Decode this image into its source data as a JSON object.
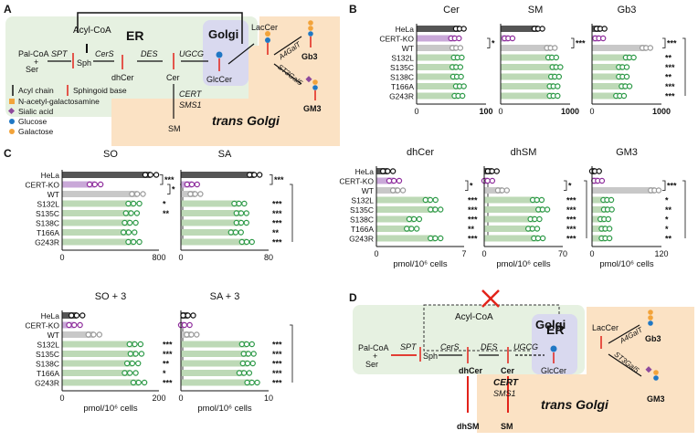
{
  "panel_labels": {
    "a": "A",
    "b": "B",
    "c": "C",
    "d": "D"
  },
  "pathway_a": {
    "er_label": "ER",
    "golgi_label": "Golgi",
    "trans_golgi_label": "trans Golgi",
    "acyl_coa": "Acyl-CoA",
    "palcoa": "Pal-CoA",
    "plus": "+",
    "ser": "Ser",
    "spt": "SPT",
    "sph": "Sph",
    "cers": "CerS",
    "des": "DES",
    "ugcg": "UGCG",
    "dhcer": "dhCer",
    "cer": "Cer",
    "glccer": "GlcCer",
    "laccer": "LacCer",
    "a4galt": "A4GalT",
    "st3gal5": "ST3Gal5",
    "gb3": "Gb3",
    "gm3": "GM3",
    "cert": "CERT",
    "sms1": "SMS1",
    "sm": "SM"
  },
  "legend_a": [
    {
      "label": "Acyl chain",
      "icon": "acyl-chain-icon",
      "color": "#111111"
    },
    {
      "label": "Sphingoid base",
      "icon": "sphingoid-base-icon",
      "color": "#e2231a"
    },
    {
      "label": "N-acetyl-galactosamine",
      "icon": "square-icon",
      "color": "#f2a33a"
    },
    {
      "label": "Sialic acid",
      "icon": "diamond-icon",
      "color": "#8e4a9c"
    },
    {
      "label": "Glucose",
      "icon": "circle-icon",
      "color": "#1f77c4"
    },
    {
      "label": "Galactose",
      "icon": "circle-icon",
      "color": "#f2a33a"
    }
  ],
  "pathway_d": {
    "er_label": "ER",
    "golgi_label": "Golgi",
    "trans_golgi_label": "trans Golgi",
    "acyl_coa": "Acyl-CoA",
    "palcoa": "Pal-CoA",
    "plus": "+",
    "ser": "Ser",
    "spt": "SPT",
    "sph": "Sph",
    "cers": "CerS",
    "des": "DES",
    "ugcg": "UGCG",
    "dhcer": "dhCer",
    "cer": "Cer",
    "glccer": "GlcCer",
    "laccer": "LacCer",
    "a4galt": "A4GalT",
    "st3gal5": "ST3Gal5",
    "gb3": "Gb3",
    "gm3": "GM3",
    "cert": "CERT",
    "sms1": "SMS1",
    "dhsm": "dhSM",
    "sm": "SM"
  },
  "units_label": "pmol/10⁶ cells",
  "colors": {
    "hela": "#555555",
    "certko": "#c9a8d8",
    "certko_marker": "#8e2c9c",
    "wt": "#c8c8c8",
    "wt_marker": "#9a9a9a",
    "mutant": "#bdd9b6",
    "mutant_marker": "#2e9a48",
    "er_bg": "#e6f1e1",
    "golgi_bg": "#d9d9ef",
    "trans_bg": "#fbe2c4"
  },
  "chart_data": [
    {
      "id": "cer",
      "title": "Cer",
      "type": "bar",
      "categories": [
        "HeLa",
        "CERT-KO",
        "WT",
        "S132L",
        "S135C",
        "S138C",
        "T166A",
        "G243R"
      ],
      "values": [
        62,
        55,
        57,
        59,
        57,
        58,
        62,
        60
      ],
      "xlim": [
        0,
        100
      ],
      "ticks": [
        "0",
        "100"
      ],
      "significance": [
        {
          "from": "CERT-KO",
          "to": "WT",
          "label": "*"
        }
      ],
      "group_labels": []
    },
    {
      "id": "sm",
      "title": "SM",
      "type": "bar",
      "categories": [
        "HeLa",
        "CERT-KO",
        "WT",
        "S132L",
        "S135C",
        "S138C",
        "T166A",
        "G243R"
      ],
      "values": [
        540,
        110,
        720,
        740,
        800,
        780,
        760,
        760
      ],
      "xlim": [
        0,
        1000
      ],
      "ticks": [
        "0",
        "1000"
      ],
      "significance": [
        {
          "from": "CERT-KO",
          "to": "WT",
          "label": "***"
        }
      ],
      "group_labels": []
    },
    {
      "id": "gb3",
      "title": "Gb3",
      "type": "bar",
      "categories": [
        "HeLa",
        "CERT-KO",
        "WT",
        "S132L",
        "S135C",
        "S138C",
        "T166A",
        "G243R"
      ],
      "values": [
        120,
        100,
        780,
        540,
        440,
        440,
        480,
        400
      ],
      "xlim": [
        0,
        1000
      ],
      "ticks": [
        "0",
        "1000"
      ],
      "significance": [
        {
          "from": "CERT-KO",
          "to": "WT",
          "label": "***"
        }
      ],
      "group_labels": [
        "**",
        "***",
        "**",
        "***",
        "***"
      ]
    },
    {
      "id": "dhcer",
      "title": "dhCer",
      "type": "bar",
      "categories": [
        "HeLa",
        "CERT-KO",
        "WT",
        "S132L",
        "S135C",
        "S138C",
        "T166A",
        "G243R"
      ],
      "values": [
        0.9,
        1.4,
        1.7,
        4.3,
        4.7,
        3.0,
        2.8,
        4.7
      ],
      "xlim": [
        0,
        7
      ],
      "ticks": [
        "0",
        "7"
      ],
      "significance": [
        {
          "from": "CERT-KO",
          "to": "WT",
          "label": "*"
        }
      ],
      "group_labels": [
        "***",
        "***",
        "***",
        "**",
        "***"
      ]
    },
    {
      "id": "dhsm",
      "title": "dhSM",
      "type": "bar",
      "categories": [
        "HeLa",
        "CERT-KO",
        "WT",
        "S132L",
        "S135C",
        "S138C",
        "T166A",
        "G243R"
      ],
      "values": [
        7,
        3,
        16,
        47,
        52,
        45,
        43,
        48
      ],
      "xlim": [
        0,
        70
      ],
      "ticks": [
        "0",
        "70"
      ],
      "significance": [
        {
          "from": "CERT-KO",
          "to": "WT",
          "label": "*"
        }
      ],
      "group_labels": [
        "***",
        "***",
        "***",
        "***",
        "***"
      ]
    },
    {
      "id": "gm3",
      "title": "GM3",
      "type": "bar",
      "categories": [
        "HeLa",
        "CERT-KO",
        "WT",
        "S132L",
        "S135C",
        "S138C",
        "T166A",
        "G243R"
      ],
      "values": [
        5,
        10,
        108,
        26,
        27,
        21,
        23,
        23
      ],
      "xlim": [
        0,
        120
      ],
      "ticks": [
        "0",
        "120"
      ],
      "significance": [
        {
          "from": "CERT-KO",
          "to": "WT",
          "label": "***"
        }
      ],
      "group_labels": [
        "*",
        "**",
        "*",
        "*",
        "**"
      ]
    },
    {
      "id": "so",
      "title": "SO",
      "type": "bar",
      "categories": [
        "HeLa",
        "CERT-KO",
        "WT",
        "S132L",
        "S135C",
        "S138C",
        "T166A",
        "G243R"
      ],
      "values": [
        730,
        270,
        620,
        590,
        570,
        560,
        550,
        590
      ],
      "xlim": [
        0,
        800
      ],
      "ticks": [
        "0",
        "800"
      ],
      "significance": [
        {
          "from": "HeLa",
          "to": "CERT-KO",
          "label": "***"
        },
        {
          "from": "CERT-KO",
          "to": "WT",
          "label": "*"
        }
      ],
      "group_labels": [
        "*",
        "**"
      ]
    },
    {
      "id": "sa",
      "title": "SA",
      "type": "bar",
      "categories": [
        "HeLa",
        "CERT-KO",
        "WT",
        "S132L",
        "S135C",
        "S138C",
        "T166A",
        "G243R"
      ],
      "values": [
        67,
        10,
        13,
        53,
        55,
        55,
        50,
        60
      ],
      "xlim": [
        0,
        80
      ],
      "ticks": [
        "0",
        "80"
      ],
      "significance": [
        {
          "from": "HeLa",
          "to": "CERT-KO",
          "label": "***"
        }
      ],
      "group_labels": [
        "***",
        "***",
        "***",
        "**",
        "***"
      ]
    },
    {
      "id": "so3",
      "title": "SO + 3",
      "type": "bar",
      "categories": [
        "HeLa",
        "CERT-KO",
        "WT",
        "S132L",
        "S135C",
        "S138C",
        "T166A",
        "G243R"
      ],
      "values": [
        30,
        25,
        65,
        150,
        152,
        145,
        140,
        158
      ],
      "xlim": [
        0,
        200
      ],
      "ticks": [
        "0",
        "200"
      ],
      "significance": [],
      "group_labels": [
        "***",
        "***",
        "**",
        "*",
        "***"
      ]
    },
    {
      "id": "sa3",
      "title": "SA + 3",
      "type": "bar",
      "categories": [
        "HeLa",
        "CERT-KO",
        "WT",
        "S132L",
        "S135C",
        "S138C",
        "T166A",
        "G243R"
      ],
      "values": [
        0.8,
        0.4,
        1.2,
        7.5,
        7.7,
        7.6,
        7.2,
        8.1
      ],
      "xlim": [
        0,
        10
      ],
      "ticks": [
        "0",
        "10"
      ],
      "significance": [],
      "group_labels": [
        "***",
        "***",
        "***",
        "***",
        "***"
      ]
    }
  ]
}
